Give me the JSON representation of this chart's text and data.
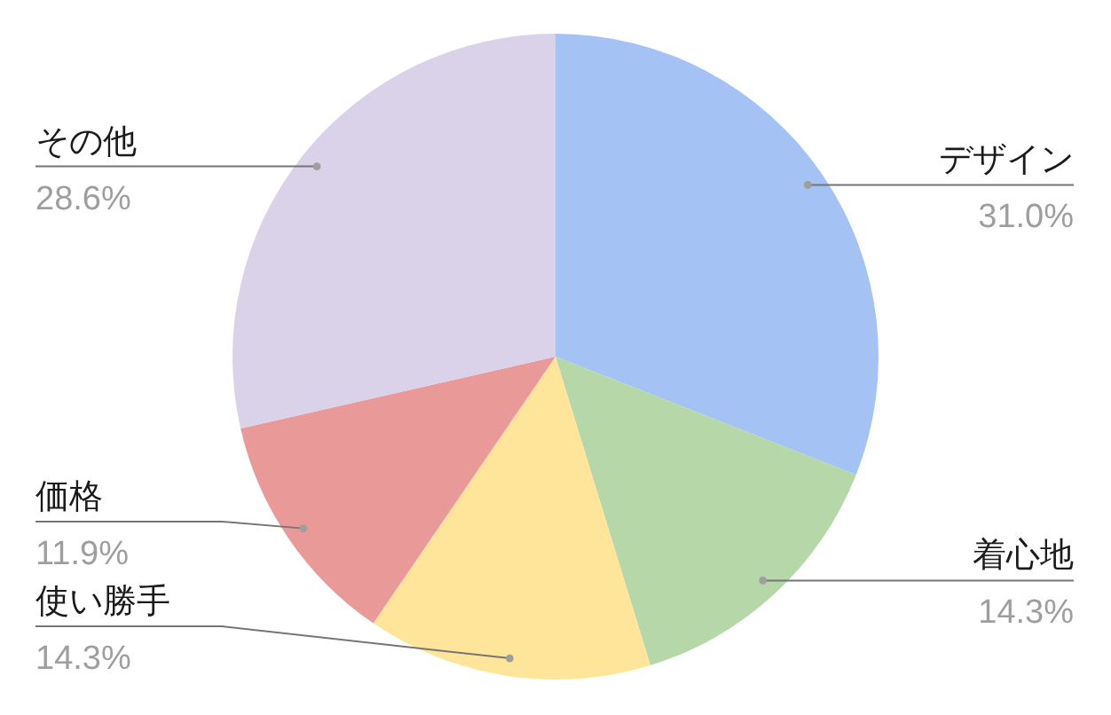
{
  "chart_data": {
    "type": "pie",
    "categories": [
      "デザイン",
      "着心地",
      "使い勝手",
      "価格",
      "その他"
    ],
    "values": [
      31.0,
      14.3,
      14.3,
      11.9,
      28.6
    ],
    "colors": [
      "#a4c2f4",
      "#b6d7a8",
      "#ffe599",
      "#ea9999",
      "#d9d2e9"
    ],
    "value_labels": [
      "31.0%",
      "14.3%",
      "14.3%",
      "11.9%",
      "28.6%"
    ]
  }
}
